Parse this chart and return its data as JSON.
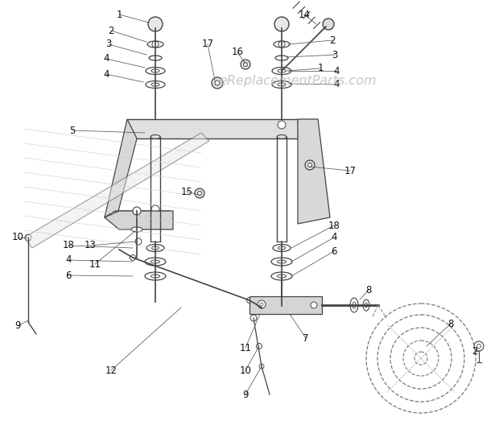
{
  "bg_color": "#ffffff",
  "line_color": "#444444",
  "gray_color": "#888888",
  "watermark": "eReplacementParts.com",
  "watermark_color": "#c8c8c8",
  "label_fontsize": 8.5,
  "label_color": "#111111"
}
